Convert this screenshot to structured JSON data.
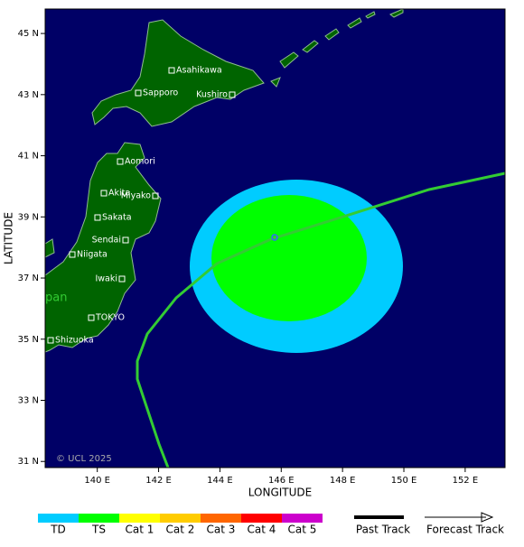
{
  "map": {
    "x_label": "LONGITUDE",
    "y_label": "LATITUDE",
    "lon_range": [
      138.3,
      153.3
    ],
    "lat_range": [
      30.8,
      45.8
    ],
    "lon_ticks": [
      {
        "value": 140,
        "label": "140 E"
      },
      {
        "value": 142,
        "label": "142 E"
      },
      {
        "value": 144,
        "label": "144 E"
      },
      {
        "value": 146,
        "label": "146 E"
      },
      {
        "value": 148,
        "label": "148 E"
      },
      {
        "value": 150,
        "label": "150 E"
      },
      {
        "value": 152,
        "label": "152 E"
      }
    ],
    "lat_ticks": [
      {
        "value": 31,
        "label": "31 N"
      },
      {
        "value": 33,
        "label": "33 N"
      },
      {
        "value": 35,
        "label": "35 N"
      },
      {
        "value": 37,
        "label": "37 N"
      },
      {
        "value": 39,
        "label": "39 N"
      },
      {
        "value": 41,
        "label": "41 N"
      },
      {
        "value": 43,
        "label": "43 N"
      },
      {
        "value": 45,
        "label": "45 N"
      }
    ],
    "cities": [
      "Asahikawa",
      "Sapporo",
      "Kushiro",
      "Aomori",
      "Akita",
      "Miyako",
      "Sakata",
      "Sendai",
      "Niigata",
      "Iwaki",
      "TOKYO",
      "Shizuoka"
    ],
    "region_label": "pan",
    "credit": "© UCL 2025"
  },
  "legend": {
    "categories": [
      {
        "name": "TD",
        "color": "#00ccff"
      },
      {
        "name": "TS",
        "color": "#00ff00"
      },
      {
        "name": "Cat 1",
        "color": "#ffff00"
      },
      {
        "name": "Cat 2",
        "color": "#ffcc00"
      },
      {
        "name": "Cat 3",
        "color": "#ff6600"
      },
      {
        "name": "Cat 4",
        "color": "#ff0000"
      },
      {
        "name": "Cat 5",
        "color": "#cc00cc"
      }
    ],
    "past_track": "Past Track",
    "forecast_track": "Forecast Track"
  }
}
